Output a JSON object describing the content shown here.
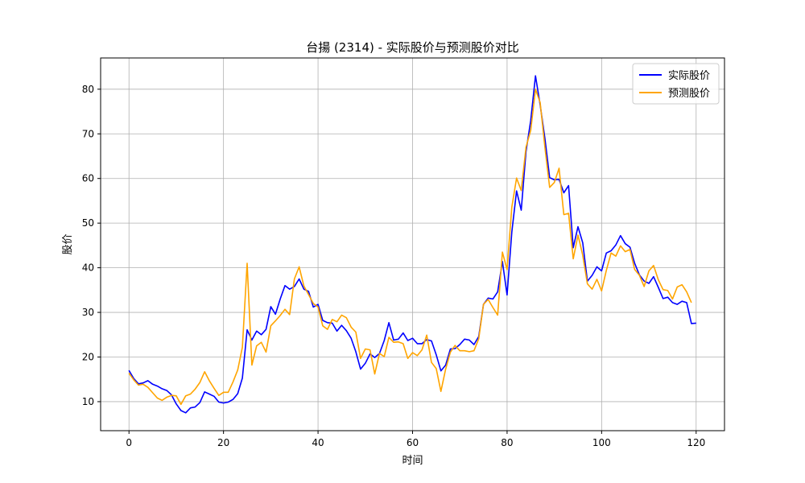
{
  "chart_data": {
    "type": "line",
    "title": "台揚 (2314) - 实际股价与预测股价对比",
    "xlabel": "时间",
    "ylabel": "股价",
    "xlim": [
      -6,
      126
    ],
    "ylim": [
      3.5,
      87
    ],
    "xticks": [
      0,
      20,
      40,
      60,
      80,
      100,
      120
    ],
    "yticks": [
      10,
      20,
      30,
      40,
      50,
      60,
      70,
      80
    ],
    "grid": true,
    "legend_position": "top-right",
    "series": [
      {
        "name": "实际股价",
        "color": "#0000ff",
        "values": [
          17.0,
          15.2,
          14.0,
          14.2,
          14.7,
          13.9,
          13.5,
          12.9,
          12.5,
          11.5,
          9.5,
          8.0,
          7.5,
          8.6,
          8.8,
          9.8,
          12.2,
          11.7,
          11.2,
          9.9,
          9.7,
          9.9,
          10.5,
          11.8,
          15.3,
          26.1,
          23.8,
          25.8,
          25.0,
          26.2,
          31.3,
          29.6,
          33.0,
          36.0,
          35.2,
          35.8,
          37.5,
          35.2,
          34.7,
          31.2,
          31.8,
          28.2,
          27.7,
          27.6,
          25.8,
          27.1,
          25.9,
          24.2,
          21.2,
          17.3,
          18.6,
          20.7,
          19.9,
          20.8,
          23.7,
          27.7,
          23.8,
          24.0,
          25.4,
          23.7,
          24.2,
          23.0,
          23.0,
          23.9,
          23.6,
          20.5,
          16.9,
          18.2,
          21.8,
          21.9,
          22.8,
          24.0,
          23.8,
          22.8,
          24.6,
          31.8,
          33.2,
          33.0,
          34.6,
          41.4,
          33.9,
          48.0,
          57.2,
          52.9,
          66.0,
          73.0,
          83.0,
          76.5,
          69.0,
          60.2,
          59.7,
          59.8,
          56.8,
          58.4,
          44.5,
          49.2,
          45.6,
          37.0,
          38.3,
          40.2,
          39.3,
          43.3,
          43.8,
          45.1,
          47.2,
          45.4,
          44.6,
          41.0,
          38.4,
          37.0,
          36.5,
          38.0,
          35.6,
          33.1,
          33.4,
          32.2,
          31.8,
          32.5,
          32.2,
          27.5,
          27.6
        ]
      },
      {
        "name": "预测股价",
        "color": "#ffa500",
        "values": [
          16.4,
          14.9,
          13.7,
          13.9,
          13.2,
          12.0,
          10.8,
          10.3,
          11.0,
          11.4,
          11.3,
          9.4,
          11.3,
          11.7,
          12.8,
          14.3,
          16.7,
          14.7,
          13.0,
          11.4,
          12.1,
          12.1,
          14.4,
          17.1,
          22.2,
          41.0,
          18.2,
          22.5,
          23.3,
          21.1,
          27.0,
          28.1,
          29.3,
          30.7,
          29.5,
          37.5,
          40.2,
          35.9,
          34.0,
          32.0,
          31.2,
          27.0,
          26.2,
          28.4,
          27.9,
          29.4,
          28.8,
          26.7,
          25.6,
          19.7,
          21.8,
          21.6,
          16.2,
          20.8,
          20.1,
          24.4,
          23.3,
          23.4,
          23.0,
          19.7,
          21.0,
          20.3,
          21.6,
          24.9,
          18.8,
          17.4,
          12.3,
          17.3,
          21.1,
          22.6,
          21.4,
          21.4,
          21.2,
          21.4,
          24.1,
          31.8,
          32.9,
          31.1,
          29.4,
          43.5,
          39.6,
          53.6,
          60.1,
          57.3,
          67.0,
          70.8,
          80.0,
          77.0,
          67.0,
          58.0,
          59.1,
          62.3,
          51.9,
          52.2,
          42.0,
          47.3,
          42.8,
          36.4,
          35.2,
          37.4,
          34.8,
          39.4,
          43.3,
          42.6,
          44.9,
          43.6,
          44.1,
          39.6,
          38.3,
          35.8,
          39.3,
          40.5,
          37.3,
          35.1,
          34.9,
          33.0,
          35.7,
          36.2,
          34.6,
          32.2
        ]
      }
    ]
  }
}
